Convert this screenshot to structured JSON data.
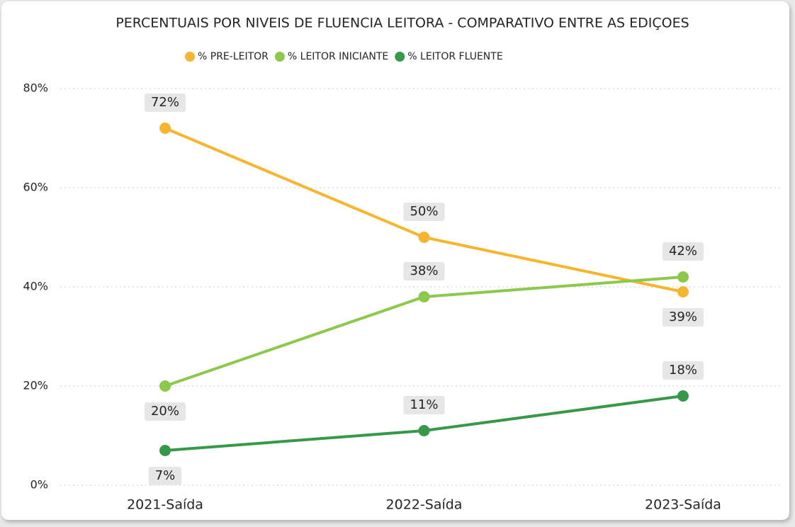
{
  "chart_data": {
    "type": "line",
    "title": "PERCENTUAIS POR NIVEIS DE FLUENCIA LEITORA - COMPARATIVO ENTRE AS EDIÇOES",
    "categories": [
      "2021-Saída",
      "2022-Saída",
      "2023-Saída"
    ],
    "series": [
      {
        "name": "% PRE-LEITOR",
        "color": "#f5b52e",
        "values": [
          72,
          50,
          39
        ],
        "value_labels": [
          "72%",
          "50%",
          "39%"
        ]
      },
      {
        "name": "% LEITOR INICIANTE",
        "color": "#8cc84b",
        "values": [
          20,
          38,
          42
        ],
        "value_labels": [
          "20%",
          "38%",
          "42%"
        ]
      },
      {
        "name": "% LEITOR FLUENTE",
        "color": "#36994a",
        "values": [
          7,
          11,
          18
        ],
        "value_labels": [
          "7%",
          "11%",
          "18%"
        ]
      }
    ],
    "ylim": [
      0,
      80
    ],
    "yticks": [
      {
        "value": 0,
        "label": "0%"
      },
      {
        "value": 20,
        "label": "20%"
      },
      {
        "value": 40,
        "label": "40%"
      },
      {
        "value": 60,
        "label": "60%"
      },
      {
        "value": 80,
        "label": "80%"
      }
    ],
    "grid": true,
    "legend": "top"
  }
}
